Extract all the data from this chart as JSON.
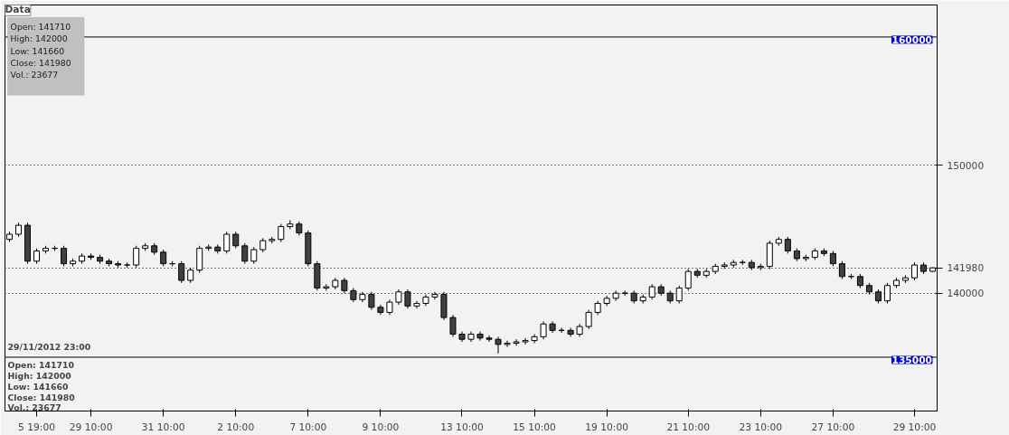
{
  "chart_data": {
    "type": "candlestick",
    "categories": [
      null,
      null,
      null,
      "5 19:00",
      null,
      null,
      null,
      null,
      null,
      "29 10:00",
      null,
      null,
      null,
      null,
      null,
      null,
      null,
      "31 10:00",
      null,
      null,
      null,
      null,
      null,
      null,
      null,
      "2 10:00",
      null,
      null,
      null,
      null,
      null,
      null,
      null,
      "7 10:00",
      null,
      null,
      null,
      null,
      null,
      null,
      null,
      "9 10:00",
      null,
      null,
      null,
      null,
      null,
      null,
      null,
      null,
      "13 10:00",
      null,
      null,
      null,
      null,
      null,
      null,
      null,
      "15 10:00",
      null,
      null,
      null,
      null,
      null,
      null,
      null,
      "19 10:00",
      null,
      null,
      null,
      null,
      null,
      null,
      null,
      null,
      "21 10:00",
      null,
      null,
      null,
      null,
      null,
      null,
      null,
      "23 10:00",
      null,
      null,
      null,
      null,
      null,
      null,
      null,
      "27 10:00",
      null,
      null,
      null,
      null,
      null,
      null,
      null,
      null,
      "29 10:00",
      null,
      null
    ],
    "ohlc": [
      [
        144200,
        144800,
        144000,
        144600
      ],
      [
        144600,
        145500,
        144400,
        145300
      ],
      [
        145300,
        145500,
        142300,
        142500
      ],
      [
        142500,
        143500,
        142300,
        143300
      ],
      [
        143300,
        143700,
        143100,
        143500
      ],
      [
        143500,
        143700,
        143300,
        143500
      ],
      [
        143500,
        143700,
        142100,
        142300
      ],
      [
        142300,
        142700,
        142100,
        142500
      ],
      [
        142500,
        143100,
        142300,
        142900
      ],
      [
        142900,
        143100,
        142600,
        142800
      ],
      [
        142800,
        143000,
        142300,
        142500
      ],
      [
        142500,
        142700,
        142100,
        142300
      ],
      [
        142300,
        142500,
        142000,
        142200
      ],
      [
        142200,
        142400,
        142000,
        142200
      ],
      [
        142200,
        143700,
        142000,
        143500
      ],
      [
        143500,
        143900,
        143300,
        143700
      ],
      [
        143700,
        143900,
        143000,
        143200
      ],
      [
        143200,
        143400,
        142100,
        142300
      ],
      [
        142300,
        142500,
        142100,
        142300
      ],
      [
        142300,
        142500,
        140800,
        141000
      ],
      [
        141000,
        142000,
        140800,
        141800
      ],
      [
        141800,
        143700,
        141600,
        143500
      ],
      [
        143500,
        143800,
        143300,
        143600
      ],
      [
        143600,
        143800,
        143100,
        143300
      ],
      [
        143300,
        144800,
        143100,
        144600
      ],
      [
        144600,
        144800,
        143500,
        143700
      ],
      [
        143700,
        143900,
        142300,
        142500
      ],
      [
        142500,
        143600,
        142300,
        143400
      ],
      [
        143400,
        144300,
        143200,
        144100
      ],
      [
        144100,
        144400,
        143900,
        144200
      ],
      [
        144200,
        145400,
        144000,
        145200
      ],
      [
        145200,
        145700,
        145000,
        145400
      ],
      [
        145400,
        145600,
        144500,
        144700
      ],
      [
        144700,
        144900,
        142100,
        142300
      ],
      [
        142300,
        142500,
        140200,
        140400
      ],
      [
        140400,
        140700,
        140200,
        140500
      ],
      [
        140500,
        141200,
        140300,
        141000
      ],
      [
        141000,
        141200,
        140000,
        140200
      ],
      [
        140200,
        140400,
        139300,
        139500
      ],
      [
        139500,
        140100,
        139300,
        139900
      ],
      [
        139900,
        140100,
        138700,
        138900
      ],
      [
        138900,
        139100,
        138300,
        138500
      ],
      [
        138500,
        139500,
        138300,
        139300
      ],
      [
        139300,
        140300,
        139100,
        140100
      ],
      [
        140100,
        140300,
        138800,
        139000
      ],
      [
        139000,
        139400,
        138800,
        139200
      ],
      [
        139200,
        139900,
        139000,
        139700
      ],
      [
        139700,
        140100,
        139500,
        139900
      ],
      [
        139900,
        140100,
        137900,
        138100
      ],
      [
        138100,
        138300,
        136600,
        136800
      ],
      [
        136800,
        137000,
        136200,
        136400
      ],
      [
        136400,
        137000,
        136200,
        136800
      ],
      [
        136800,
        137000,
        136300,
        136500
      ],
      [
        136500,
        136700,
        136200,
        136400
      ],
      [
        136400,
        136600,
        135300,
        136000
      ],
      [
        136000,
        136300,
        135800,
        136100
      ],
      [
        136100,
        136400,
        135900,
        136200
      ],
      [
        136200,
        136500,
        136000,
        136300
      ],
      [
        136300,
        136800,
        136100,
        136600
      ],
      [
        136600,
        137800,
        136400,
        137600
      ],
      [
        137600,
        137800,
        136900,
        137100
      ],
      [
        137100,
        137300,
        136900,
        137100
      ],
      [
        137100,
        137300,
        136600,
        136800
      ],
      [
        136800,
        137600,
        136600,
        137400
      ],
      [
        137400,
        138700,
        137200,
        138500
      ],
      [
        138500,
        139400,
        138300,
        139200
      ],
      [
        139200,
        139800,
        139000,
        139600
      ],
      [
        139600,
        140200,
        139400,
        140000
      ],
      [
        140000,
        140200,
        139800,
        140000
      ],
      [
        140000,
        140200,
        139200,
        139400
      ],
      [
        139400,
        139900,
        139200,
        139700
      ],
      [
        139700,
        140700,
        139500,
        140500
      ],
      [
        140500,
        140700,
        139800,
        140000
      ],
      [
        140000,
        140200,
        139200,
        139400
      ],
      [
        139400,
        140600,
        139200,
        140400
      ],
      [
        140400,
        141900,
        140200,
        141700
      ],
      [
        141700,
        141900,
        141200,
        141400
      ],
      [
        141400,
        141900,
        141200,
        141700
      ],
      [
        141700,
        142300,
        141500,
        142100
      ],
      [
        142100,
        142400,
        141900,
        142200
      ],
      [
        142200,
        142600,
        142000,
        142400
      ],
      [
        142400,
        142600,
        142200,
        142400
      ],
      [
        142400,
        142600,
        141800,
        142000
      ],
      [
        142000,
        142300,
        141800,
        142100
      ],
      [
        142100,
        144100,
        141900,
        143900
      ],
      [
        143900,
        144400,
        143700,
        144200
      ],
      [
        144200,
        144400,
        143100,
        143300
      ],
      [
        143300,
        143500,
        142500,
        142700
      ],
      [
        142700,
        143000,
        142500,
        142800
      ],
      [
        142800,
        143500,
        142600,
        143300
      ],
      [
        143300,
        143500,
        142900,
        143100
      ],
      [
        143100,
        143300,
        142100,
        142300
      ],
      [
        142300,
        142500,
        141100,
        141300
      ],
      [
        141300,
        141500,
        141100,
        141300
      ],
      [
        141300,
        141500,
        140400,
        140600
      ],
      [
        140600,
        140800,
        139900,
        140100
      ],
      [
        140100,
        140300,
        139200,
        139400
      ],
      [
        139400,
        140800,
        139200,
        140600
      ],
      [
        140600,
        141200,
        140400,
        141000
      ],
      [
        141000,
        141400,
        140800,
        141200
      ],
      [
        141200,
        142400,
        141000,
        142200
      ],
      [
        142200,
        142400,
        141500,
        141700
      ],
      [
        141710,
        142000,
        141660,
        141980
      ]
    ],
    "ylim": [
      130800,
      162500
    ],
    "yticks": [
      140000,
      141980,
      150000
    ],
    "grid": "y",
    "ref_lines": [
      {
        "axis": "y",
        "value": 160000,
        "label": "160000"
      },
      {
        "axis": "y",
        "value": 135000,
        "label": "135000"
      }
    ],
    "annotations": [
      "Data",
      "Open: 141710",
      "High: 142000",
      "Low: 141660",
      "Close: 141980",
      "Vol.: 23677",
      "29/11/2012 23:00",
      "Open: 141710",
      "High: 142000",
      "Low: 141660",
      "Close: 141980",
      "Vol.: 23677"
    ]
  }
}
